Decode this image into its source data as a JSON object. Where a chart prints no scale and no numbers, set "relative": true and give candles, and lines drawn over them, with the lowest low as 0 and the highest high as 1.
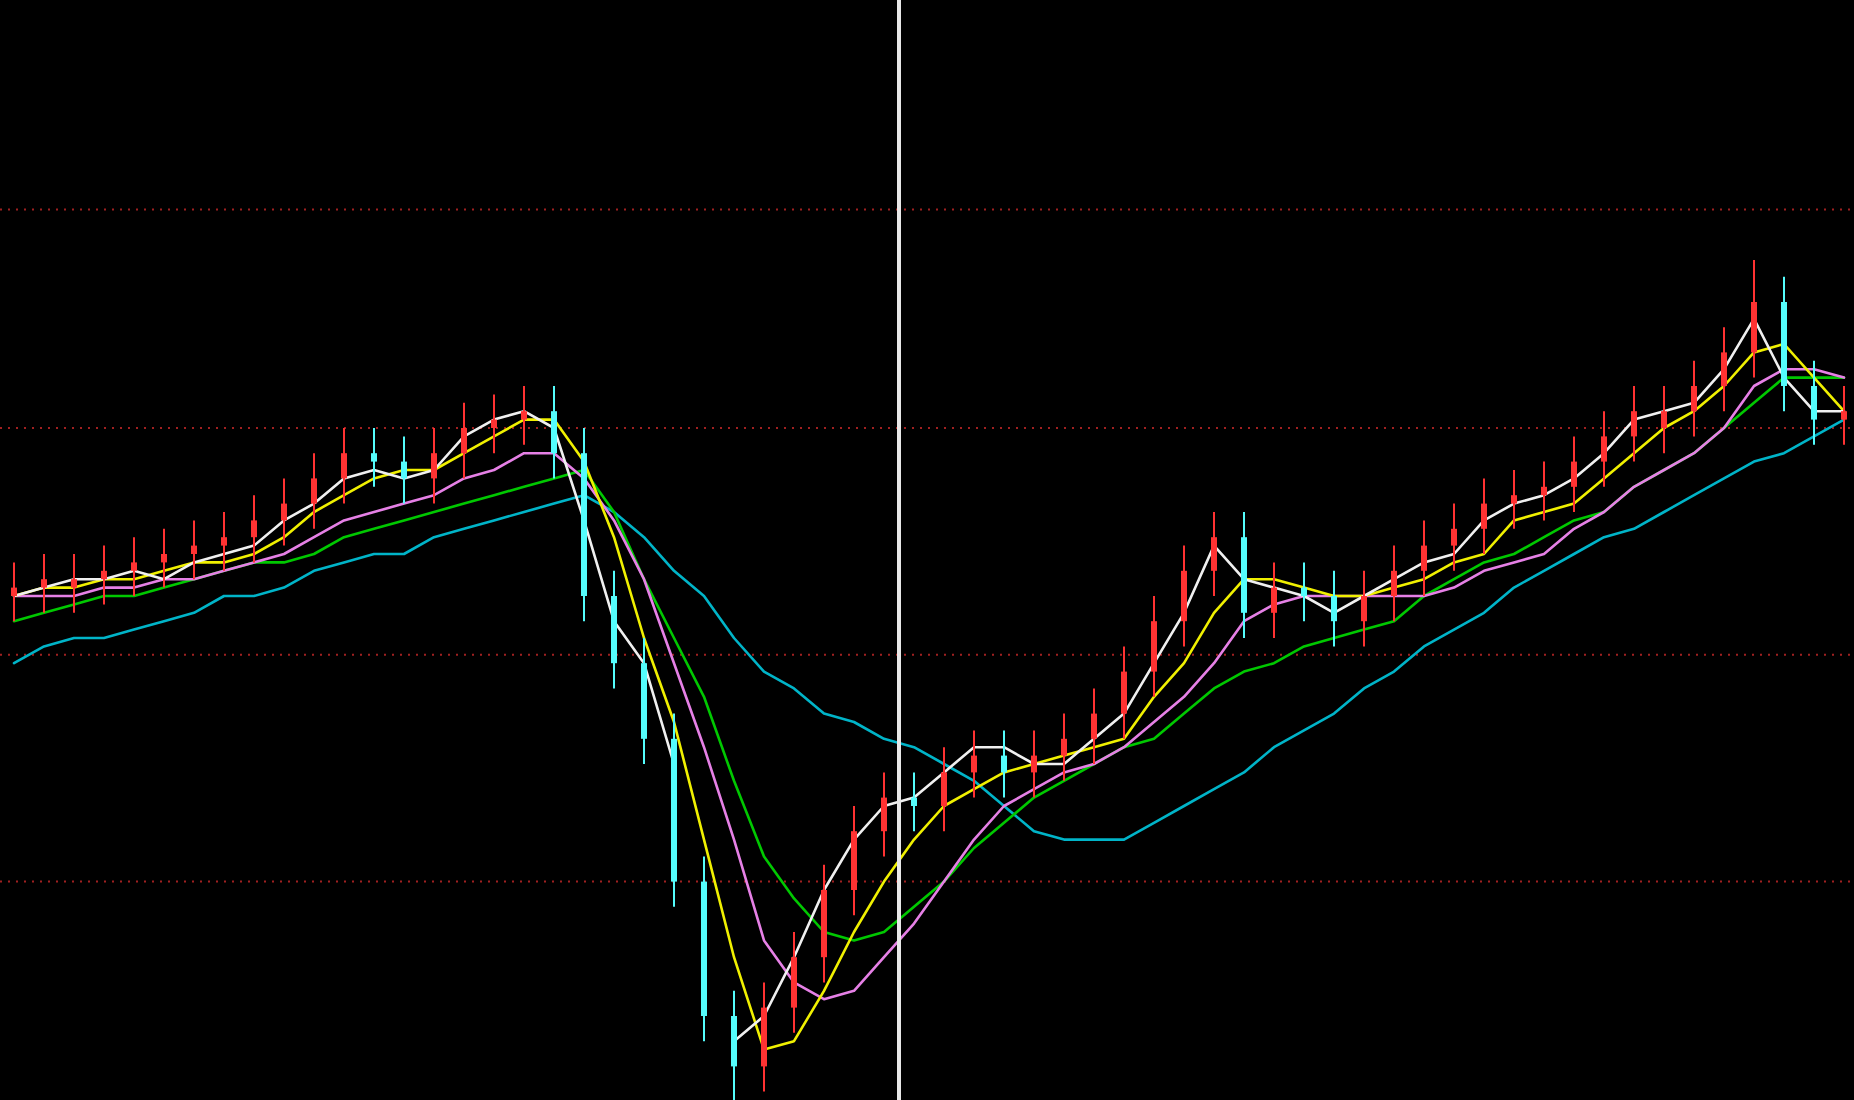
{
  "chart_data": {
    "type": "candlestick",
    "relative": true,
    "ref_lines": [
      {
        "axis": "y",
        "value": 1.06,
        "color": "#a02020",
        "line_style": "dotted"
      },
      {
        "axis": "y",
        "value": 0.8,
        "color": "#a02020",
        "line_style": "dotted"
      },
      {
        "axis": "y",
        "value": 0.53,
        "color": "#a02020",
        "line_style": "dotted"
      },
      {
        "axis": "y",
        "value": 0.26,
        "color": "#a02020",
        "line_style": "dotted"
      }
    ],
    "categories": [
      null,
      null,
      null,
      null,
      null,
      null,
      null,
      null,
      null,
      null,
      null,
      null,
      null,
      null,
      null,
      null,
      null,
      null,
      null,
      null,
      null,
      null,
      null,
      null,
      null,
      null,
      null,
      null,
      null,
      null,
      null,
      null,
      null,
      null,
      null,
      null,
      null,
      null,
      null,
      null,
      null,
      null,
      null,
      null,
      null,
      null,
      null,
      null,
      null,
      null,
      null,
      null,
      null,
      null,
      null,
      null,
      null,
      null,
      null,
      null,
      null,
      null
    ],
    "ohlc": [
      [
        0.6,
        0.64,
        0.57,
        0.61
      ],
      [
        0.61,
        0.65,
        0.58,
        0.62
      ],
      [
        0.61,
        0.65,
        0.58,
        0.62
      ],
      [
        0.62,
        0.66,
        0.59,
        0.63
      ],
      [
        0.63,
        0.67,
        0.6,
        0.64
      ],
      [
        0.64,
        0.68,
        0.61,
        0.65
      ],
      [
        0.65,
        0.69,
        0.62,
        0.66
      ],
      [
        0.66,
        0.7,
        0.63,
        0.67
      ],
      [
        0.67,
        0.72,
        0.64,
        0.69
      ],
      [
        0.69,
        0.74,
        0.66,
        0.71
      ],
      [
        0.71,
        0.77,
        0.68,
        0.74
      ],
      [
        0.74,
        0.8,
        0.71,
        0.77
      ],
      [
        0.77,
        0.8,
        0.73,
        0.76
      ],
      [
        0.76,
        0.79,
        0.71,
        0.74
      ],
      [
        0.74,
        0.8,
        0.71,
        0.77
      ],
      [
        0.77,
        0.83,
        0.74,
        0.8
      ],
      [
        0.8,
        0.84,
        0.77,
        0.81
      ],
      [
        0.81,
        0.85,
        0.78,
        0.82
      ],
      [
        0.82,
        0.85,
        0.74,
        0.77
      ],
      [
        0.77,
        0.8,
        0.57,
        0.6
      ],
      [
        0.6,
        0.63,
        0.49,
        0.52
      ],
      [
        0.52,
        0.55,
        0.4,
        0.43
      ],
      [
        0.43,
        0.46,
        0.23,
        0.26
      ],
      [
        0.26,
        0.29,
        0.07,
        0.1
      ],
      [
        0.1,
        0.13,
        0.0,
        0.04
      ],
      [
        0.04,
        0.14,
        0.01,
        0.11
      ],
      [
        0.11,
        0.2,
        0.08,
        0.17
      ],
      [
        0.17,
        0.28,
        0.14,
        0.25
      ],
      [
        0.25,
        0.35,
        0.22,
        0.32
      ],
      [
        0.32,
        0.39,
        0.29,
        0.36
      ],
      [
        0.36,
        0.39,
        0.32,
        0.35
      ],
      [
        0.35,
        0.42,
        0.32,
        0.39
      ],
      [
        0.39,
        0.44,
        0.36,
        0.41
      ],
      [
        0.41,
        0.44,
        0.36,
        0.39
      ],
      [
        0.39,
        0.44,
        0.36,
        0.41
      ],
      [
        0.41,
        0.46,
        0.38,
        0.43
      ],
      [
        0.43,
        0.49,
        0.4,
        0.46
      ],
      [
        0.46,
        0.54,
        0.43,
        0.51
      ],
      [
        0.51,
        0.6,
        0.48,
        0.57
      ],
      [
        0.57,
        0.66,
        0.54,
        0.63
      ],
      [
        0.63,
        0.7,
        0.6,
        0.67
      ],
      [
        0.67,
        0.7,
        0.55,
        0.58
      ],
      [
        0.58,
        0.64,
        0.55,
        0.61
      ],
      [
        0.61,
        0.64,
        0.57,
        0.6
      ],
      [
        0.6,
        0.63,
        0.54,
        0.57
      ],
      [
        0.57,
        0.63,
        0.54,
        0.6
      ],
      [
        0.6,
        0.66,
        0.57,
        0.63
      ],
      [
        0.63,
        0.69,
        0.6,
        0.66
      ],
      [
        0.66,
        0.71,
        0.63,
        0.68
      ],
      [
        0.68,
        0.74,
        0.65,
        0.71
      ],
      [
        0.71,
        0.75,
        0.68,
        0.72
      ],
      [
        0.72,
        0.76,
        0.69,
        0.73
      ],
      [
        0.73,
        0.79,
        0.7,
        0.76
      ],
      [
        0.76,
        0.82,
        0.73,
        0.79
      ],
      [
        0.79,
        0.85,
        0.76,
        0.82
      ],
      [
        0.8,
        0.85,
        0.77,
        0.82
      ],
      [
        0.82,
        0.88,
        0.79,
        0.85
      ],
      [
        0.85,
        0.92,
        0.82,
        0.89
      ],
      [
        0.89,
        1.0,
        0.86,
        0.95
      ],
      [
        0.95,
        0.98,
        0.82,
        0.85
      ],
      [
        0.85,
        0.88,
        0.78,
        0.81
      ],
      [
        0.81,
        0.85,
        0.78,
        0.82
      ]
    ],
    "colors": [
      "#ff3232",
      "#ff3232",
      "#ff3232",
      "#ff3232",
      "#ff3232",
      "#ff3232",
      "#ff3232",
      "#ff3232",
      "#ff3232",
      "#ff3232",
      "#ff3232",
      "#ff3232",
      "#54fcfc",
      "#54fcfc",
      "#ff3232",
      "#ff3232",
      "#ff3232",
      "#ff3232",
      "#54fcfc",
      "#54fcfc",
      "#54fcfc",
      "#54fcfc",
      "#54fcfc",
      "#54fcfc",
      "#54fcfc",
      "#ff3232",
      "#ff3232",
      "#ff3232",
      "#ff3232",
      "#ff3232",
      "#54fcfc",
      "#ff3232",
      "#ff3232",
      "#54fcfc",
      "#ff3232",
      "#ff3232",
      "#ff3232",
      "#ff3232",
      "#ff3232",
      "#ff3232",
      "#ff3232",
      "#54fcfc",
      "#ff3232",
      "#54fcfc",
      "#54fcfc",
      "#ff3232",
      "#ff3232",
      "#ff3232",
      "#ff3232",
      "#ff3232",
      "#ff3232",
      "#ff3232",
      "#ff3232",
      "#ff3232",
      "#ff3232",
      "#ff3232",
      "#ff3232",
      "#ff3232",
      "#ff3232",
      "#54fcfc",
      "#54fcfc",
      "#ff3232"
    ],
    "series": [
      {
        "type": "line",
        "color": "#00b4c8",
        "values": [
          0.52,
          0.54,
          0.55,
          0.55,
          0.56,
          0.57,
          0.58,
          0.6,
          0.6,
          0.61,
          0.63,
          0.64,
          0.65,
          0.65,
          0.67,
          0.68,
          0.69,
          0.7,
          0.71,
          0.72,
          0.7,
          0.67,
          0.63,
          0.6,
          0.55,
          0.51,
          0.49,
          0.46,
          0.45,
          0.43,
          0.42,
          0.4,
          0.38,
          0.35,
          0.32,
          0.31,
          0.31,
          0.31,
          0.33,
          0.35,
          0.37,
          0.39,
          0.42,
          0.44,
          0.46,
          0.49,
          0.51,
          0.54,
          0.56,
          0.58,
          0.61,
          0.63,
          0.65,
          0.67,
          0.68,
          0.7,
          0.72,
          0.74,
          0.76,
          0.77,
          0.79,
          0.81
        ]
      },
      {
        "type": "line",
        "color": "#00c800",
        "values": [
          0.57,
          0.58,
          0.59,
          0.6,
          0.6,
          0.61,
          0.62,
          0.63,
          0.64,
          0.64,
          0.65,
          0.67,
          0.68,
          0.69,
          0.7,
          0.71,
          0.72,
          0.73,
          0.74,
          0.75,
          0.7,
          0.62,
          0.55,
          0.48,
          0.38,
          0.29,
          0.24,
          0.2,
          0.19,
          0.2,
          0.23,
          0.26,
          0.3,
          0.33,
          0.36,
          0.38,
          0.4,
          0.42,
          0.43,
          0.46,
          0.49,
          0.51,
          0.52,
          0.54,
          0.55,
          0.56,
          0.57,
          0.6,
          0.62,
          0.64,
          0.65,
          0.67,
          0.69,
          0.7,
          0.73,
          0.75,
          0.77,
          0.8,
          0.83,
          0.86,
          0.86,
          0.86
        ]
      },
      {
        "type": "line",
        "color": "#e680e6",
        "values": [
          0.6,
          0.6,
          0.6,
          0.61,
          0.61,
          0.62,
          0.62,
          0.63,
          0.64,
          0.65,
          0.67,
          0.69,
          0.7,
          0.71,
          0.72,
          0.74,
          0.75,
          0.77,
          0.77,
          0.74,
          0.69,
          0.62,
          0.52,
          0.42,
          0.31,
          0.19,
          0.14,
          0.12,
          0.13,
          0.17,
          0.21,
          0.26,
          0.31,
          0.35,
          0.37,
          0.39,
          0.4,
          0.42,
          0.45,
          0.48,
          0.52,
          0.57,
          0.59,
          0.6,
          0.6,
          0.6,
          0.6,
          0.6,
          0.61,
          0.63,
          0.64,
          0.65,
          0.68,
          0.7,
          0.73,
          0.75,
          0.77,
          0.8,
          0.85,
          0.87,
          0.87,
          0.86
        ]
      },
      {
        "type": "line",
        "color": "#f0f000",
        "values": [
          0.6,
          0.61,
          0.61,
          0.62,
          0.62,
          0.63,
          0.64,
          0.64,
          0.65,
          0.67,
          0.7,
          0.72,
          0.74,
          0.75,
          0.75,
          0.77,
          0.79,
          0.81,
          0.81,
          0.76,
          0.67,
          0.55,
          0.45,
          0.31,
          0.17,
          0.06,
          0.07,
          0.13,
          0.2,
          0.26,
          0.31,
          0.35,
          0.37,
          0.39,
          0.4,
          0.41,
          0.42,
          0.43,
          0.48,
          0.52,
          0.58,
          0.62,
          0.62,
          0.61,
          0.6,
          0.6,
          0.61,
          0.62,
          0.64,
          0.65,
          0.69,
          0.7,
          0.71,
          0.74,
          0.77,
          0.8,
          0.82,
          0.85,
          0.89,
          0.9,
          0.86,
          0.82
        ]
      },
      {
        "type": "line",
        "color": "#f0f0f0",
        "values": [
          0.6,
          0.61,
          0.62,
          0.62,
          0.63,
          0.62,
          0.64,
          0.65,
          0.66,
          0.69,
          0.71,
          0.74,
          0.75,
          0.74,
          0.75,
          0.79,
          0.81,
          0.82,
          0.8,
          0.69,
          0.57,
          0.52,
          0.4,
          null,
          0.07,
          0.1,
          0.17,
          0.25,
          0.31,
          0.35,
          0.36,
          0.39,
          0.42,
          0.42,
          0.4,
          0.4,
          0.43,
          0.46,
          0.52,
          0.58,
          0.66,
          0.62,
          0.61,
          0.6,
          0.58,
          0.6,
          0.62,
          0.64,
          0.65,
          0.69,
          0.71,
          0.72,
          0.74,
          0.77,
          0.81,
          0.82,
          0.83,
          0.87,
          0.93,
          0.86,
          0.82,
          0.82
        ]
      }
    ]
  }
}
